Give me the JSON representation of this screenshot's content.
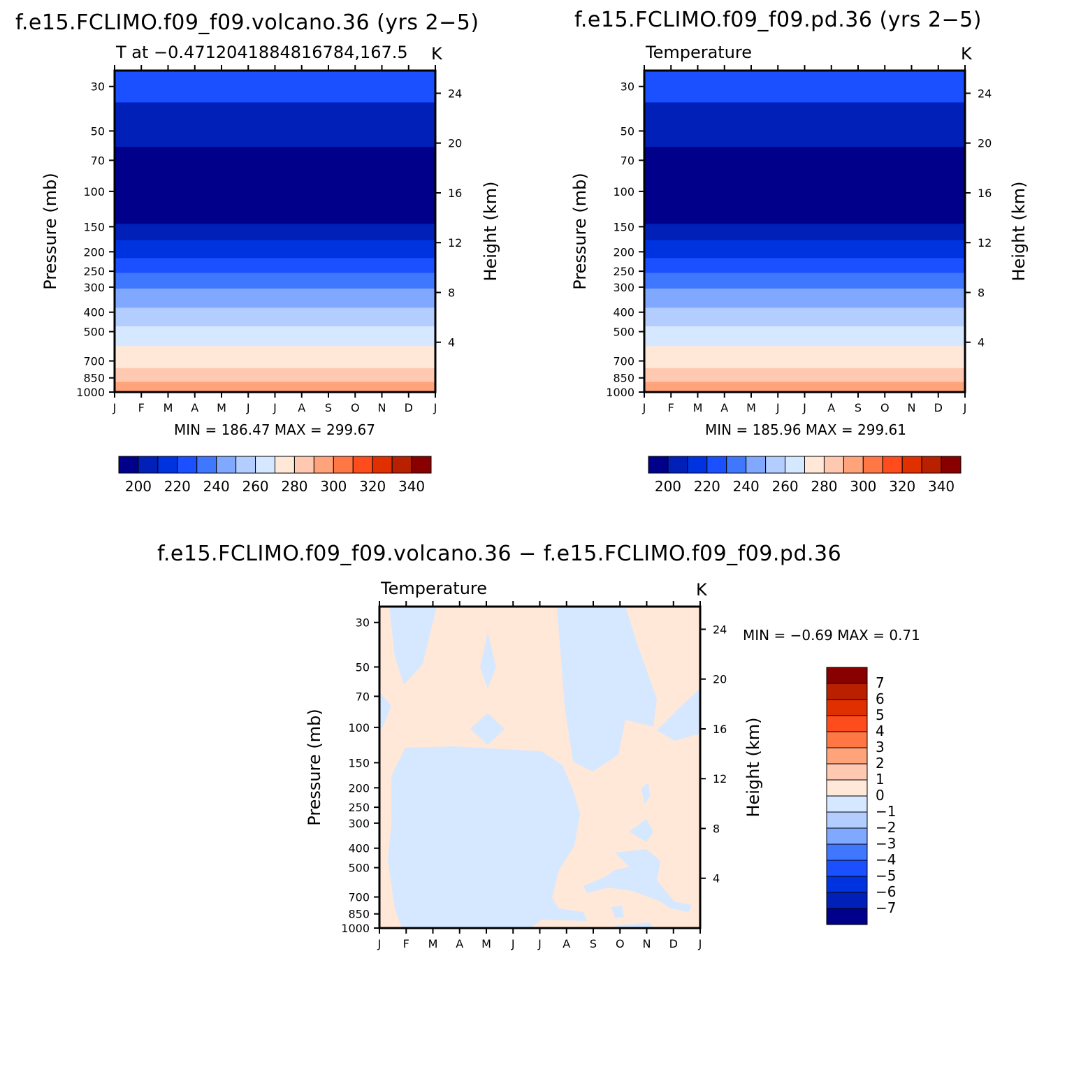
{
  "titles": {
    "top_left": "f.e15.FCLIMO.f09_f09.volcano.36 (yrs 2−5)",
    "top_right": "f.e15.FCLIMO.f09_f09.pd.36 (yrs 2−5)",
    "bottom": "f.e15.FCLIMO.f09_f09.volcano.36 − f.e15.FCLIMO.f09_f09.pd.36"
  },
  "chart_data": [
    {
      "type": "heatmap",
      "subtitle_left": "T at −0.4712041884816784,167.5",
      "subtitle_right": "K",
      "xlabel": "",
      "ylabel": "Pressure (mb)",
      "y2label": "Height (km)",
      "x_ticks": [
        "J",
        "F",
        "M",
        "A",
        "M",
        "J",
        "J",
        "A",
        "S",
        "O",
        "N",
        "D",
        "J"
      ],
      "y_ticks": [
        30,
        50,
        70,
        100,
        150,
        200,
        250,
        300,
        400,
        500,
        700,
        850,
        1000
      ],
      "y2_ticks": [
        24,
        20,
        16,
        12,
        8,
        4
      ],
      "ylim": [
        1000,
        25
      ],
      "y_scale": "log",
      "min_label": "MIN = 186.47 MAX = 299.67",
      "colorbar_labels": [
        "200",
        "220",
        "240",
        "260",
        "280",
        "300",
        "320",
        "340"
      ],
      "colorbar_levels": [
        190,
        200,
        210,
        220,
        230,
        240,
        250,
        260,
        270,
        280,
        290,
        300,
        310,
        320,
        330,
        340,
        350
      ],
      "colors": [
        "#00008a",
        "#0020b8",
        "#0033e0",
        "#1a50ff",
        "#3f78ff",
        "#80a8ff",
        "#b3cdff",
        "#d6e8ff",
        "#ffe8d8",
        "#ffc8b0",
        "#ffa37a",
        "#ff7744",
        "#ff4c1c",
        "#e03000",
        "#b82000",
        "#880000"
      ],
      "bands_by_pressure": [
        {
          "from": 25,
          "to": 36,
          "value": 225
        },
        {
          "from": 36,
          "to": 60,
          "value": 205
        },
        {
          "from": 60,
          "to": 145,
          "value": 195
        },
        {
          "from": 145,
          "to": 175,
          "value": 205
        },
        {
          "from": 175,
          "to": 215,
          "value": 215
        },
        {
          "from": 215,
          "to": 255,
          "value": 225
        },
        {
          "from": 255,
          "to": 305,
          "value": 235
        },
        {
          "from": 305,
          "to": 380,
          "value": 245
        },
        {
          "from": 380,
          "to": 470,
          "value": 255
        },
        {
          "from": 470,
          "to": 590,
          "value": 265
        },
        {
          "from": 590,
          "to": 760,
          "value": 275
        },
        {
          "from": 760,
          "to": 890,
          "value": 285
        },
        {
          "from": 890,
          "to": 1000,
          "value": 295
        }
      ]
    },
    {
      "type": "heatmap",
      "subtitle_left": "Temperature",
      "subtitle_right": "K",
      "xlabel": "",
      "ylabel": "Pressure (mb)",
      "y2label": "Height (km)",
      "x_ticks": [
        "J",
        "F",
        "M",
        "A",
        "M",
        "J",
        "J",
        "A",
        "S",
        "O",
        "N",
        "D",
        "J"
      ],
      "y_ticks": [
        30,
        50,
        70,
        100,
        150,
        200,
        250,
        300,
        400,
        500,
        700,
        850,
        1000
      ],
      "y2_ticks": [
        24,
        20,
        16,
        12,
        8,
        4
      ],
      "ylim": [
        1000,
        25
      ],
      "y_scale": "log",
      "min_label": "MIN = 185.96 MAX = 299.61",
      "colorbar_labels": [
        "200",
        "220",
        "240",
        "260",
        "280",
        "300",
        "320",
        "340"
      ],
      "colorbar_levels": [
        190,
        200,
        210,
        220,
        230,
        240,
        250,
        260,
        270,
        280,
        290,
        300,
        310,
        320,
        330,
        340,
        350
      ],
      "colors": [
        "#00008a",
        "#0020b8",
        "#0033e0",
        "#1a50ff",
        "#3f78ff",
        "#80a8ff",
        "#b3cdff",
        "#d6e8ff",
        "#ffe8d8",
        "#ffc8b0",
        "#ffa37a",
        "#ff7744",
        "#ff4c1c",
        "#e03000",
        "#b82000",
        "#880000"
      ],
      "bands_by_pressure": [
        {
          "from": 25,
          "to": 36,
          "value": 225
        },
        {
          "from": 36,
          "to": 60,
          "value": 205
        },
        {
          "from": 60,
          "to": 145,
          "value": 195
        },
        {
          "from": 145,
          "to": 175,
          "value": 205
        },
        {
          "from": 175,
          "to": 215,
          "value": 215
        },
        {
          "from": 215,
          "to": 255,
          "value": 225
        },
        {
          "from": 255,
          "to": 305,
          "value": 235
        },
        {
          "from": 305,
          "to": 380,
          "value": 245
        },
        {
          "from": 380,
          "to": 470,
          "value": 255
        },
        {
          "from": 470,
          "to": 590,
          "value": 265
        },
        {
          "from": 590,
          "to": 760,
          "value": 275
        },
        {
          "from": 760,
          "to": 890,
          "value": 285
        },
        {
          "from": 890,
          "to": 1000,
          "value": 295
        }
      ]
    },
    {
      "type": "heatmap",
      "subtitle_left": "Temperature",
      "subtitle_right": "K",
      "xlabel": "",
      "ylabel": "Pressure (mb)",
      "y2label": "Height (km)",
      "x_ticks": [
        "J",
        "F",
        "M",
        "A",
        "M",
        "J",
        "J",
        "A",
        "S",
        "O",
        "N",
        "D",
        "J"
      ],
      "y_ticks": [
        30,
        50,
        70,
        100,
        150,
        200,
        250,
        300,
        400,
        500,
        700,
        850,
        1000
      ],
      "y2_ticks": [
        24,
        20,
        16,
        12,
        8,
        4
      ],
      "ylim": [
        1000,
        25
      ],
      "y_scale": "log",
      "min_label": "MIN =   −0.69  MAX =    0.71",
      "colorbar_labels": [
        "7",
        "6",
        "5",
        "4",
        "3",
        "2",
        "1",
        "0",
        "−1",
        "−2",
        "−3",
        "−4",
        "−5",
        "−6",
        "−7"
      ],
      "colorbar_levels": [
        -8,
        -7,
        -6,
        -5,
        -4,
        -3,
        -2,
        -1,
        0,
        1,
        2,
        3,
        4,
        5,
        6,
        7,
        8
      ],
      "colors": [
        "#00008a",
        "#0020b8",
        "#0033e0",
        "#1a50ff",
        "#3f78ff",
        "#80a8ff",
        "#b3cdff",
        "#d6e8ff",
        "#ffe8d8",
        "#ffc8b0",
        "#ffa37a",
        "#ff7744",
        "#ff4c1c",
        "#e03000",
        "#b82000",
        "#880000"
      ],
      "range": [
        -0.69,
        0.71
      ],
      "regions_note_values": {
        "positive_fill": 0.5,
        "negative_fill": -0.5
      }
    }
  ]
}
